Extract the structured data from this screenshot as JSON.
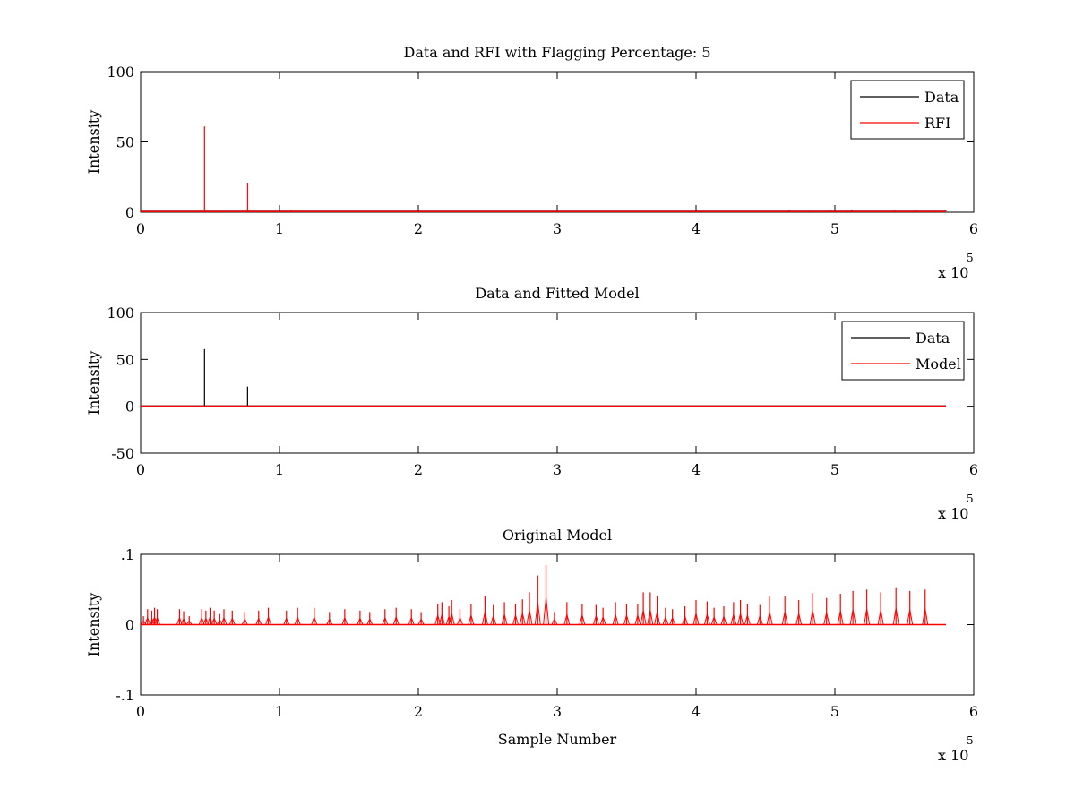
{
  "chart_data": [
    {
      "type": "line",
      "title": "Data and RFI with Flagging Percentage: 5",
      "xlabel": "",
      "ylabel": "Intensity",
      "xlim": [
        0,
        600000
      ],
      "ylim": [
        0,
        100
      ],
      "x_ticks": [
        0,
        1,
        2,
        3,
        4,
        5,
        6
      ],
      "y_ticks": [
        0,
        50,
        100
      ],
      "x_exponent_label": "x 10",
      "x_exponent_power": "5",
      "legend": {
        "placement": "top-right",
        "entries": [
          "Data",
          "RFI"
        ]
      },
      "series": [
        {
          "name": "Data",
          "color": "#000000",
          "baseline": 0.6,
          "spikes": [
            [
              467000,
              1.2
            ],
            [
              481000,
              1.0
            ],
            [
              497000,
              1.1
            ],
            [
              512000,
              1.2
            ],
            [
              527000,
              1.0
            ],
            [
              543000,
              1.1
            ],
            [
              558000,
              1.2
            ],
            [
              572000,
              1.0
            ],
            [
              580000,
              1.1
            ]
          ]
        },
        {
          "name": "RFI",
          "color": "#ff0000",
          "baseline": 0.5,
          "spikes": [
            [
              46000,
              61
            ],
            [
              77000,
              21
            ],
            [
              108000,
              1.5
            ],
            [
              420000,
              0.8
            ]
          ]
        }
      ]
    },
    {
      "type": "line",
      "title": "Data and Fitted Model",
      "xlabel": "",
      "ylabel": "Intensity",
      "xlim": [
        0,
        600000
      ],
      "ylim": [
        -50,
        100
      ],
      "x_ticks": [
        0,
        1,
        2,
        3,
        4,
        5,
        6
      ],
      "y_ticks": [
        -50,
        0,
        50,
        100
      ],
      "x_exponent_label": "x 10",
      "x_exponent_power": "5",
      "legend": {
        "placement": "top-right",
        "entries": [
          "Data",
          "Model"
        ]
      },
      "series": [
        {
          "name": "Data",
          "color": "#000000",
          "baseline": 0.3,
          "spikes": [
            [
              46000,
              61
            ],
            [
              77000,
              21
            ]
          ]
        },
        {
          "name": "Model",
          "color": "#ff0000",
          "baseline": 0.2,
          "spikes": []
        }
      ]
    },
    {
      "type": "line",
      "title": "Original Model",
      "xlabel": "Sample Number",
      "ylabel": "Intensity",
      "xlim": [
        0,
        600000
      ],
      "ylim": [
        -0.1,
        0.1
      ],
      "x_ticks": [
        0,
        1,
        2,
        3,
        4,
        5,
        6
      ],
      "y_ticks": [
        -0.1,
        0,
        0.1
      ],
      "x_exponent_label": "x 10",
      "x_exponent_power": "5",
      "series": [
        {
          "name": "",
          "color": "#ff0000",
          "baseline": 0,
          "spikes": [
            [
              2000,
              0.012
            ],
            [
              5000,
              0.022
            ],
            [
              8000,
              0.02
            ],
            [
              10000,
              0.024
            ],
            [
              12000,
              0.022
            ],
            [
              28000,
              0.022
            ],
            [
              31000,
              0.019
            ],
            [
              35000,
              0.012
            ],
            [
              44000,
              0.022
            ],
            [
              47000,
              0.02
            ],
            [
              50000,
              0.024
            ],
            [
              53000,
              0.02
            ],
            [
              57000,
              0.015
            ],
            [
              60000,
              0.022
            ],
            [
              66000,
              0.02
            ],
            [
              75000,
              0.018
            ],
            [
              85000,
              0.02
            ],
            [
              92000,
              0.024
            ],
            [
              105000,
              0.02
            ],
            [
              113000,
              0.024
            ],
            [
              125000,
              0.024
            ],
            [
              136000,
              0.018
            ],
            [
              147000,
              0.022
            ],
            [
              158000,
              0.02
            ],
            [
              165000,
              0.018
            ],
            [
              176000,
              0.022
            ],
            [
              184000,
              0.024
            ],
            [
              195000,
              0.022
            ],
            [
              202000,
              0.018
            ],
            [
              214000,
              0.03
            ],
            [
              217000,
              0.032
            ],
            [
              222000,
              0.026
            ],
            [
              224000,
              0.035
            ],
            [
              230000,
              0.022
            ],
            [
              238000,
              0.03
            ],
            [
              248000,
              0.04
            ],
            [
              254000,
              0.028
            ],
            [
              262000,
              0.032
            ],
            [
              270000,
              0.03
            ],
            [
              275000,
              0.036
            ],
            [
              280000,
              0.046
            ],
            [
              286000,
              0.07
            ],
            [
              292000,
              0.085
            ],
            [
              298000,
              0.018
            ],
            [
              307000,
              0.032
            ],
            [
              318000,
              0.03
            ],
            [
              328000,
              0.028
            ],
            [
              333000,
              0.024
            ],
            [
              342000,
              0.032
            ],
            [
              350000,
              0.03
            ],
            [
              358000,
              0.03
            ],
            [
              362000,
              0.046
            ],
            [
              367000,
              0.046
            ],
            [
              372000,
              0.04
            ],
            [
              378000,
              0.024
            ],
            [
              383000,
              0.022
            ],
            [
              392000,
              0.026
            ],
            [
              400000,
              0.035
            ],
            [
              408000,
              0.033
            ],
            [
              413000,
              0.024
            ],
            [
              420000,
              0.026
            ],
            [
              427000,
              0.032
            ],
            [
              432000,
              0.035
            ],
            [
              437000,
              0.03
            ],
            [
              446000,
              0.028
            ],
            [
              453000,
              0.04
            ],
            [
              464000,
              0.04
            ],
            [
              474000,
              0.035
            ],
            [
              484000,
              0.045
            ],
            [
              494000,
              0.038
            ],
            [
              504000,
              0.044
            ],
            [
              513000,
              0.048
            ],
            [
              523000,
              0.05
            ],
            [
              533000,
              0.046
            ],
            [
              544000,
              0.052
            ],
            [
              554000,
              0.048
            ],
            [
              565000,
              0.05
            ]
          ]
        }
      ]
    }
  ]
}
